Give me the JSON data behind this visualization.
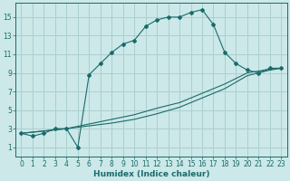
{
  "xlabel": "Humidex (Indice chaleur)",
  "bg_color": "#cce8e8",
  "grid_color": "#aacfcf",
  "line_color": "#1a6b6b",
  "xlim": [
    -0.5,
    23.5
  ],
  "ylim": [
    0,
    16.5
  ],
  "xticks": [
    0,
    1,
    2,
    3,
    4,
    5,
    6,
    7,
    8,
    9,
    10,
    11,
    12,
    13,
    14,
    15,
    16,
    17,
    18,
    19,
    20,
    21,
    22,
    23
  ],
  "yticks": [
    1,
    3,
    5,
    7,
    9,
    11,
    13,
    15
  ],
  "curve1_x": [
    0,
    1,
    2,
    3,
    4,
    5,
    6,
    7,
    8,
    9,
    10,
    11,
    12,
    13,
    14,
    15,
    16,
    17,
    18,
    19,
    20,
    21,
    22,
    23
  ],
  "curve1_y": [
    2.5,
    2.2,
    2.5,
    3.0,
    3.0,
    1.0,
    8.8,
    10.0,
    11.2,
    12.1,
    12.5,
    14.0,
    14.7,
    15.0,
    15.0,
    15.5,
    15.8,
    14.2,
    11.2,
    10.0,
    9.3,
    9.0,
    9.5,
    9.5
  ],
  "curve2_x": [
    0,
    4,
    6,
    8,
    10,
    12,
    14,
    16,
    18,
    20,
    21,
    22,
    23
  ],
  "curve2_y": [
    2.5,
    3.0,
    3.3,
    3.6,
    4.0,
    4.6,
    5.3,
    6.3,
    7.3,
    8.7,
    9.0,
    9.3,
    9.5
  ],
  "curve3_x": [
    0,
    4,
    6,
    8,
    10,
    12,
    14,
    16,
    18,
    20,
    21,
    22,
    23
  ],
  "curve3_y": [
    2.5,
    3.0,
    3.5,
    4.0,
    4.5,
    5.2,
    5.8,
    6.8,
    7.8,
    9.0,
    9.2,
    9.4,
    9.5
  ],
  "xlabel_fontsize": 6.5,
  "tick_fontsize": 5.5
}
